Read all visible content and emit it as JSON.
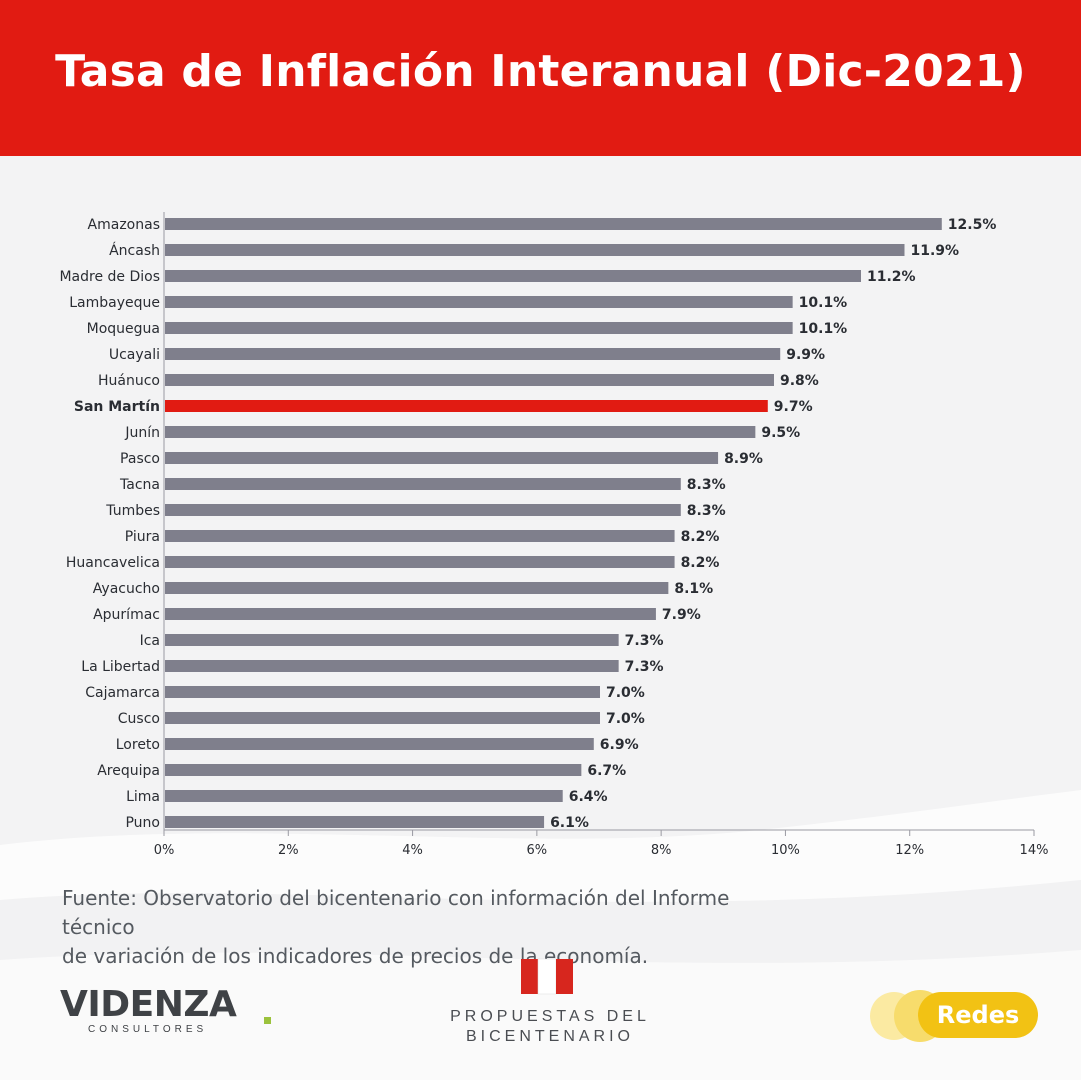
{
  "header": {
    "title": "Tasa de Inflación Interanual (Dic-2021)"
  },
  "colors": {
    "header": "#e11b12",
    "bar": "#7f7f8c",
    "highlight": "#e11b12",
    "accent": "#f2c214"
  },
  "chart_data": {
    "type": "bar",
    "orientation": "horizontal",
    "categories": [
      "Amazonas",
      "Áncash",
      "Madre de Dios",
      "Lambayeque",
      "Moquegua",
      "Ucayali",
      "Huánuco",
      "San Martín",
      "Junín",
      "Pasco",
      "Tacna",
      "Tumbes",
      "Piura",
      "Huancavelica",
      "Ayacucho",
      "Apurímac",
      "Ica",
      "La Libertad",
      "Cajamarca",
      "Cusco",
      "Loreto",
      "Arequipa",
      "Lima",
      "Puno"
    ],
    "values": [
      12.5,
      11.9,
      11.2,
      10.1,
      10.1,
      9.9,
      9.8,
      9.7,
      9.5,
      8.9,
      8.3,
      8.3,
      8.2,
      8.2,
      8.1,
      7.9,
      7.3,
      7.3,
      7.0,
      7.0,
      6.9,
      6.7,
      6.4,
      6.1
    ],
    "data_labels": [
      "12.5%",
      "11.9%",
      "11.2%",
      "10.1%",
      "10.1%",
      "9.9%",
      "9.8%",
      "9.7%",
      "9.5%",
      "8.9%",
      "8.3%",
      "8.3%",
      "8.2%",
      "8.2%",
      "8.1%",
      "7.9%",
      "7.3%",
      "7.3%",
      "7.0%",
      "7.0%",
      "6.9%",
      "6.7%",
      "6.4%",
      "6.1%"
    ],
    "highlight": "San Martín",
    "xticks": [
      "0%",
      "2%",
      "4%",
      "6%",
      "8%",
      "10%",
      "12%",
      "14%"
    ],
    "xlim": [
      0,
      14
    ],
    "grid": false
  },
  "source": {
    "line1": "Fuente: Observatorio del bicentenario con información del Informe técnico",
    "line2": "de variación de los indicadores de precios de la economía."
  },
  "logos": {
    "videnza": {
      "name": "VIDENZA",
      "sub": "CONSULTORES"
    },
    "propuestas": {
      "line1": "PROPUESTAS DEL",
      "line2": "BICENTENARIO"
    },
    "redes": {
      "label": "Redes"
    }
  }
}
